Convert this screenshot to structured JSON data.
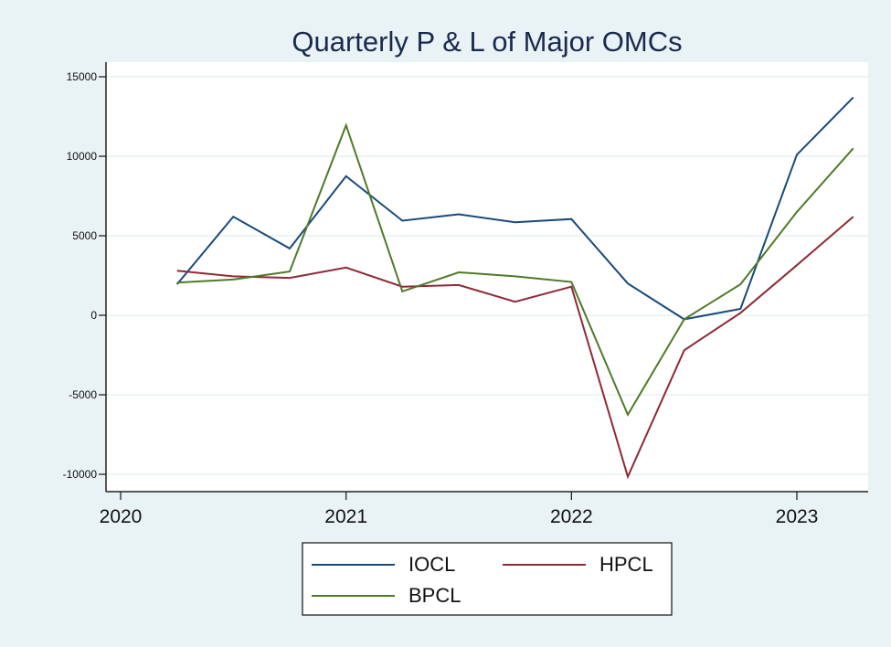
{
  "chart_data": {
    "type": "line",
    "title": "Quarterly P & L of Major OMCs",
    "xlabel": "",
    "ylabel": "",
    "x": [
      2020.25,
      2020.5,
      2020.75,
      2021.0,
      2021.25,
      2021.5,
      2021.75,
      2022.0,
      2022.25,
      2022.5,
      2022.75,
      2023.0,
      2023.25
    ],
    "xlim": [
      2019.92,
      2023.3
    ],
    "ylim": [
      -11000,
      16000
    ],
    "xticks": [
      2020,
      2021,
      2022,
      2023
    ],
    "xtick_labels": [
      "2020",
      "2021",
      "2022",
      "2023"
    ],
    "yticks": [
      -10000,
      -5000,
      0,
      5000,
      10000,
      15000
    ],
    "ytick_labels": [
      "-10000",
      "-5000",
      "0",
      "5000",
      "10000",
      "15000"
    ],
    "grid": true,
    "legend_position": "bottom",
    "series": [
      {
        "name": "IOCL",
        "color": "#1a4a7a",
        "values": [
          1950,
          6200,
          4200,
          8750,
          5950,
          6350,
          5850,
          6050,
          2000,
          -250,
          400,
          10100,
          13700
        ]
      },
      {
        "name": "HPCL",
        "color": "#8e2a35",
        "values": [
          2800,
          2450,
          2350,
          3000,
          1800,
          1900,
          850,
          1800,
          -10150,
          -2200,
          150,
          3150,
          6200
        ]
      },
      {
        "name": "BPCL",
        "color": "#4f7a28",
        "values": [
          2050,
          2250,
          2750,
          11950,
          1500,
          2700,
          2450,
          2100,
          -6250,
          -250,
          1950,
          6500,
          10500
        ]
      }
    ]
  }
}
